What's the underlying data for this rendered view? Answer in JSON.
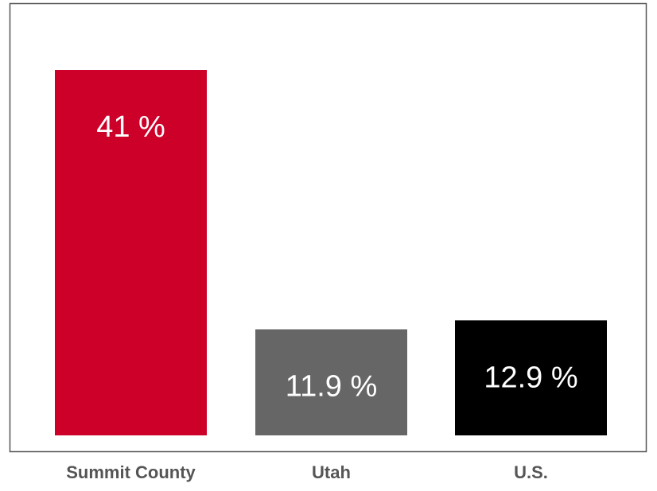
{
  "chart_data": {
    "type": "bar",
    "categories": [
      "Summit County",
      "Utah",
      "U.S."
    ],
    "values": [
      41,
      11.9,
      12.9
    ],
    "value_labels": [
      "41 %",
      "11.9 %",
      "12.9 %"
    ],
    "colors": [
      "#cc0029",
      "#666666",
      "#000000"
    ]
  }
}
